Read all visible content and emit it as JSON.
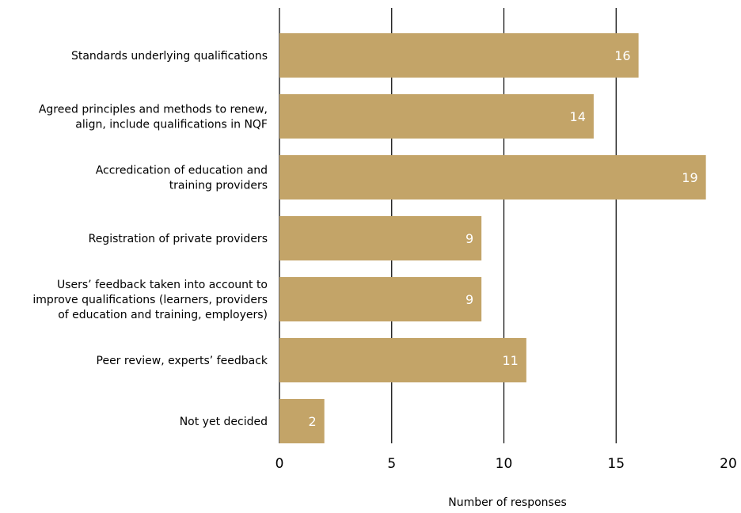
{
  "chart_data": {
    "type": "bar",
    "orientation": "horizontal",
    "categories": [
      "Standards underlying qualifications",
      "Agreed principles and methods to renew,\nalign, include qualifications in NQF",
      "Accredication of education and\ntraining providers",
      "Registration of private providers",
      "Users’ feedback taken into account to\nimprove qualifications (learners, providers\nof education and training, employers)",
      "Peer review, experts’ feedback",
      "Not yet decided"
    ],
    "values": [
      16,
      14,
      19,
      9,
      9,
      11,
      2
    ],
    "value_labels": [
      "16",
      "14",
      "19",
      "9",
      "9",
      "11",
      "2"
    ],
    "xlabel": "Number of responses",
    "ylabel": "",
    "xlim": [
      0,
      20
    ],
    "xticks": [
      0,
      5,
      10,
      15,
      20
    ],
    "grid": "vertical",
    "legend": "none",
    "bar_color": "#C3A468",
    "value_label_color": "#ffffff",
    "grid_color": "#000000"
  }
}
